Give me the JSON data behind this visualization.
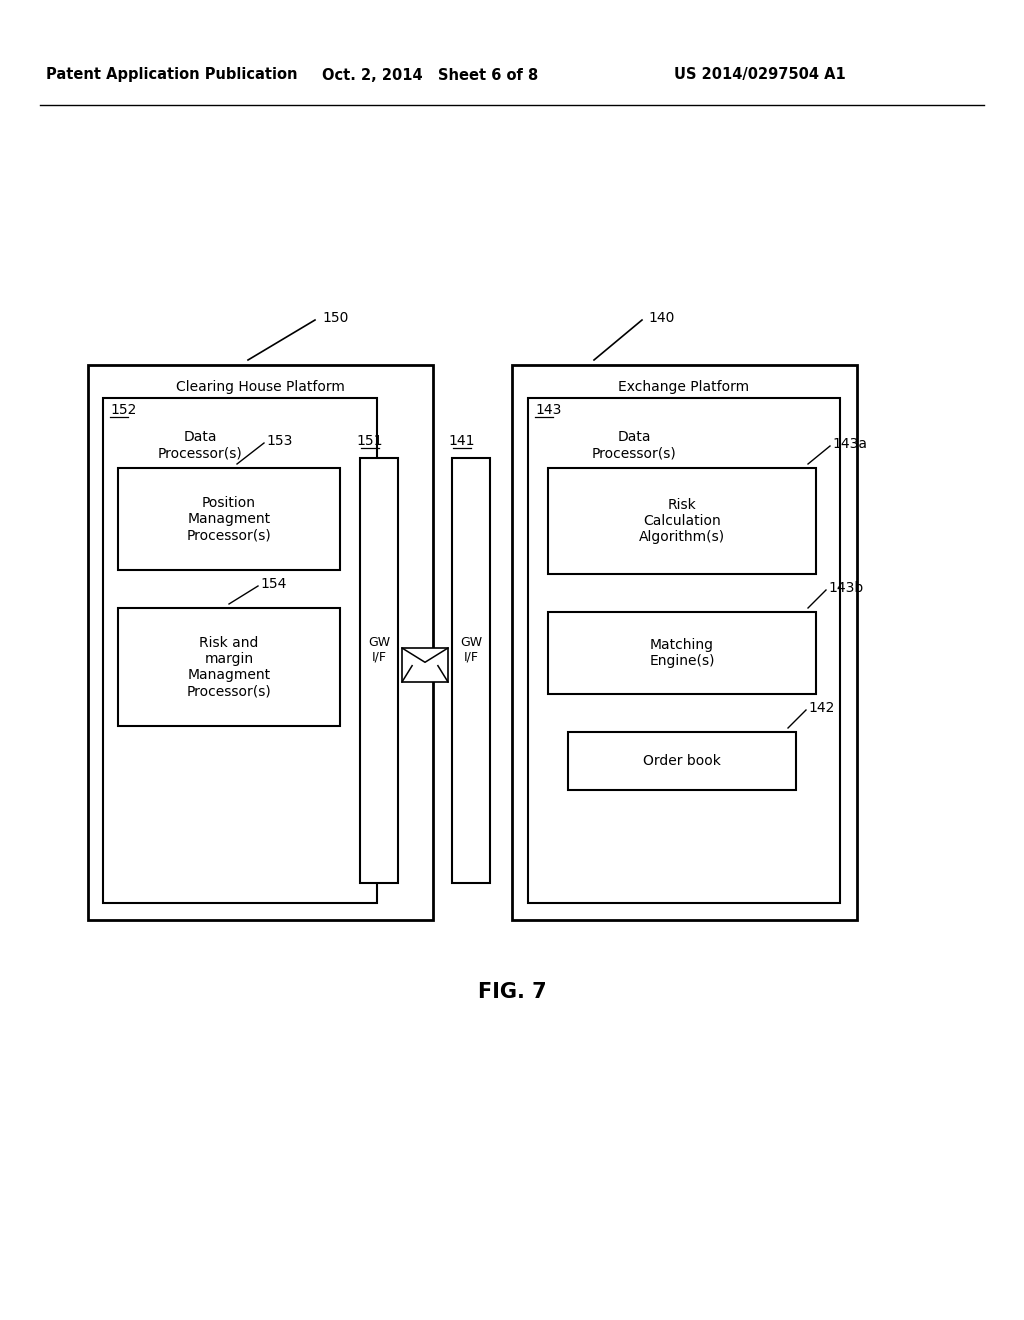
{
  "background_color": "#ffffff",
  "header_left": "Patent Application Publication",
  "header_middle": "Oct. 2, 2014   Sheet 6 of 8",
  "header_right": "US 2014/0297504 A1",
  "fig_label": "FIG. 7",
  "clearing_house_label": "Clearing House Platform",
  "clearing_house_ref": "150",
  "exchange_label": "Exchange Platform",
  "exchange_ref": "140",
  "dp_left_ref": "152",
  "dp_left_label": "Data\nProcessor(s)",
  "dp_right_ref": "143",
  "dp_right_label": "Data\nProcessor(s)",
  "pos_mgmt_ref": "153",
  "pos_mgmt_label": "Position\nManagment\nProcessor(s)",
  "risk_margin_ref": "154",
  "risk_margin_label": "Risk and\nmargin\nManagment\nProcessor(s)",
  "gw_left_ref": "151",
  "gw_left_label": "GW\nI/F",
  "gw_right_ref": "141",
  "gw_right_label": "GW\nI/F",
  "risk_calc_ref": "143a",
  "risk_calc_label": "Risk\nCalculation\nAlgorithm(s)",
  "matching_ref": "143b",
  "matching_label": "Matching\nEngine(s)",
  "order_book_ref": "142",
  "order_book_label": "Order book"
}
